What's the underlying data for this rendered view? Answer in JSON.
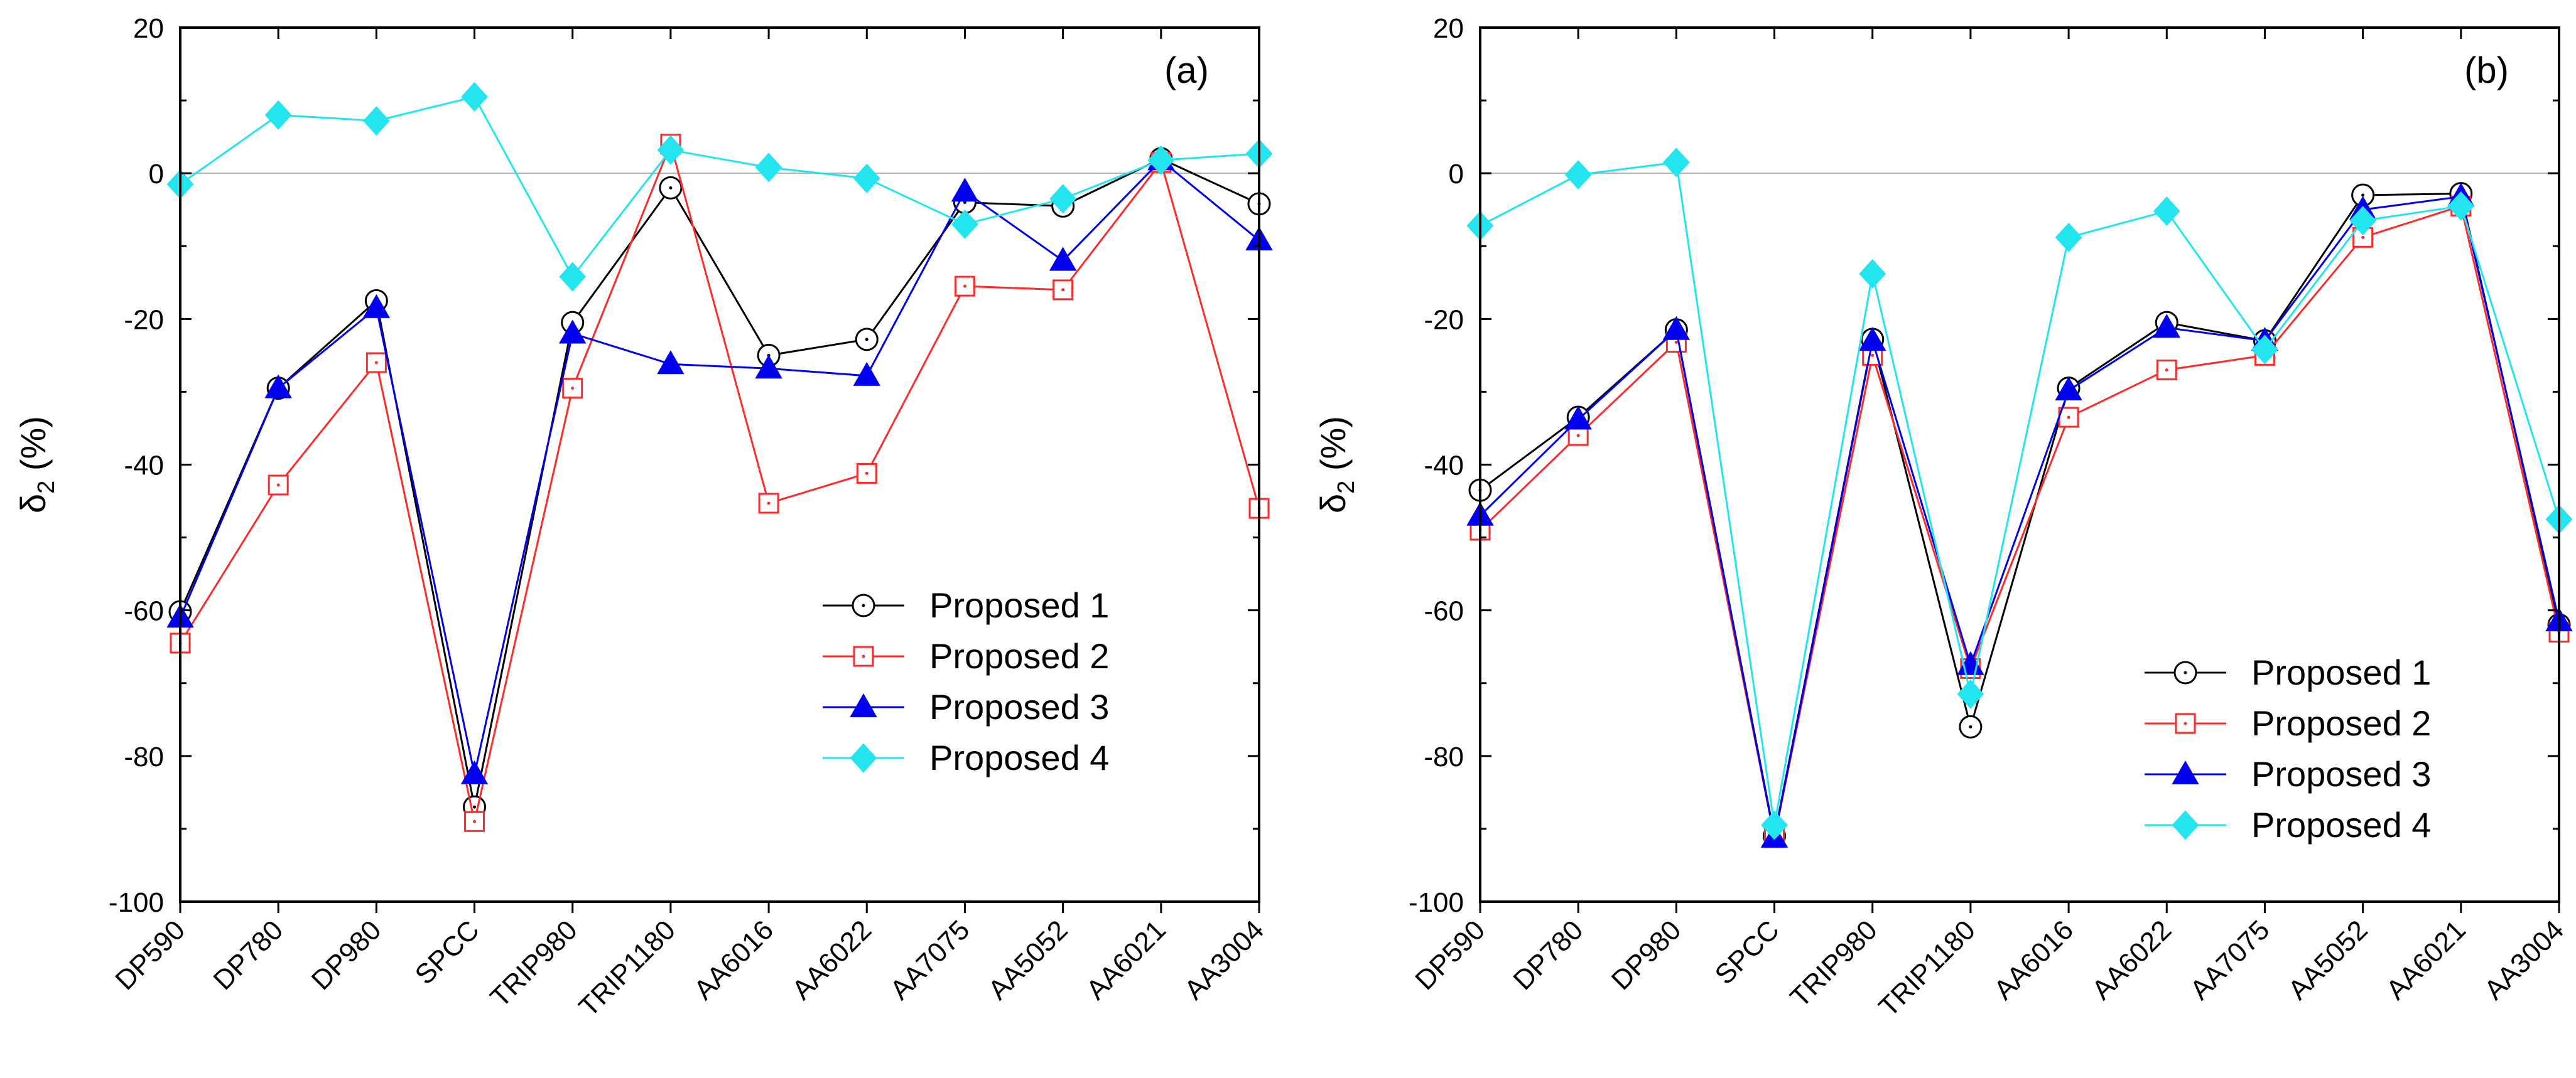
{
  "chart_data": [
    {
      "type": "line",
      "panel_label": "(a)",
      "title": "",
      "xlabel": "",
      "ylabel": "δ2 (%)",
      "ylabel_main": "δ",
      "ylabel_sub": "2",
      "ylabel_tail": " (%)",
      "ylim": [
        -100,
        20
      ],
      "yticks": [
        20,
        0,
        -20,
        -40,
        -60,
        -80,
        -100
      ],
      "zero_line": true,
      "legend_position": "bottom-right",
      "categories": [
        "DP590",
        "DP780",
        "DP980",
        "SPCC",
        "TRIP980",
        "TRIP1180",
        "AA6016",
        "AA6022",
        "AA7075",
        "AA5052",
        "AA6021",
        "AA3004"
      ],
      "series": [
        {
          "name": "Proposed 1",
          "color": "#000000",
          "marker": "circle",
          "values": [
            -60.2,
            -29.5,
            -17.5,
            -87.0,
            -20.5,
            -2.0,
            -25.0,
            -22.8,
            -4.0,
            -4.5,
            2.0,
            -4.2
          ]
        },
        {
          "name": "Proposed 2",
          "color": "#ff2a2a",
          "marker": "square",
          "values": [
            -64.5,
            -42.8,
            -26.0,
            -89.0,
            -29.5,
            4.0,
            -45.3,
            -41.2,
            -15.5,
            -16.0,
            1.5,
            -46.0
          ]
        },
        {
          "name": "Proposed 3",
          "color": "#0000ee",
          "marker": "triangle",
          "values": [
            -61.0,
            -29.5,
            -18.5,
            -82.5,
            -22.0,
            -26.2,
            -26.8,
            -27.8,
            -2.5,
            -12.0,
            1.8,
            -9.2
          ]
        },
        {
          "name": "Proposed 4",
          "color": "#22e5f0",
          "marker": "diamond",
          "values": [
            -1.5,
            8.0,
            7.2,
            10.5,
            -14.2,
            3.2,
            0.8,
            -0.7,
            -7.0,
            -3.5,
            1.8,
            2.7
          ]
        }
      ]
    },
    {
      "type": "line",
      "panel_label": "(b)",
      "title": "",
      "xlabel": "",
      "ylabel": "δ2 (%)",
      "ylabel_main": "δ",
      "ylabel_sub": "2",
      "ylabel_tail": " (%)",
      "ylim": [
        -100,
        20
      ],
      "yticks": [
        20,
        0,
        -20,
        -40,
        -60,
        -80,
        -100
      ],
      "zero_line": true,
      "legend_position": "bottom-right",
      "categories": [
        "DP590",
        "DP780",
        "DP980",
        "SPCC",
        "TRIP980",
        "TRIP1180",
        "AA6016",
        "AA6022",
        "AA7075",
        "AA5052",
        "AA6021",
        "AA3004"
      ],
      "series": [
        {
          "name": "Proposed 1",
          "color": "#000000",
          "marker": "circle",
          "values": [
            -43.5,
            -33.5,
            -21.5,
            -91.0,
            -22.8,
            -76.0,
            -29.5,
            -20.5,
            -23.0,
            -3.0,
            -2.8,
            -62.0
          ]
        },
        {
          "name": "Proposed 2",
          "color": "#ff2a2a",
          "marker": "square",
          "values": [
            -49.0,
            -36.0,
            -23.2,
            -91.2,
            -25.0,
            -68.0,
            -33.5,
            -27.0,
            -25.0,
            -8.8,
            -4.5,
            -63.0
          ]
        },
        {
          "name": "Proposed 3",
          "color": "#0000ee",
          "marker": "triangle",
          "values": [
            -47.0,
            -33.8,
            -21.5,
            -91.2,
            -23.0,
            -67.5,
            -29.8,
            -21.2,
            -23.0,
            -5.0,
            -3.2,
            -61.5
          ]
        },
        {
          "name": "Proposed 4",
          "color": "#22e5f0",
          "marker": "diamond",
          "values": [
            -7.2,
            -0.2,
            1.5,
            -89.5,
            -13.8,
            -71.5,
            -8.8,
            -5.2,
            -24.2,
            -6.5,
            -4.5,
            -47.5
          ]
        }
      ]
    }
  ]
}
